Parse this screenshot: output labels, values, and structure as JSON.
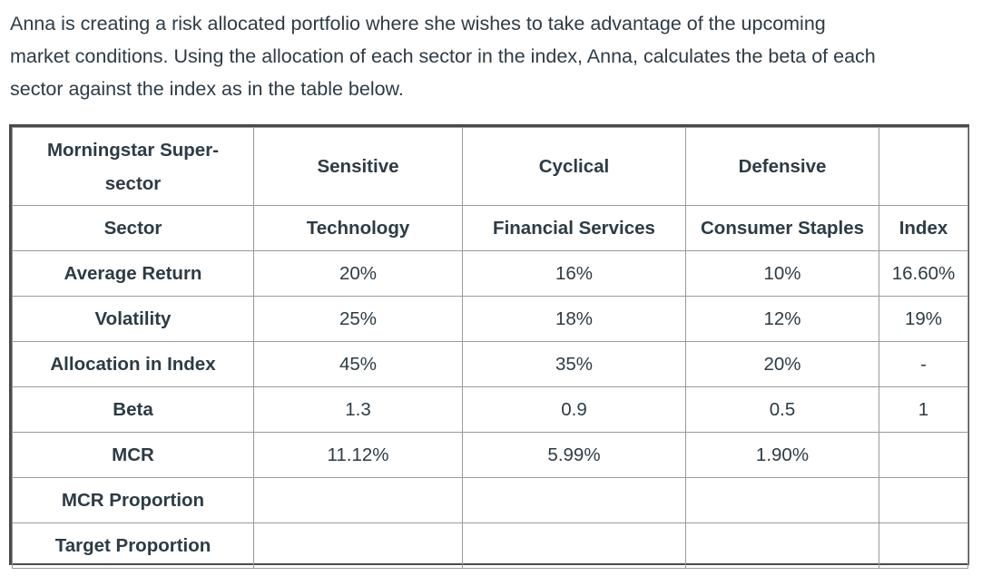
{
  "intro": {
    "line1": "Anna is creating a risk allocated portfolio where she wishes to take advantage of the upcoming",
    "line2": "market conditions. Using the allocation of each sector in the index, Anna, calculates the beta of each",
    "line3": "sector against the index as in the table below."
  },
  "table": {
    "header": {
      "label_line1": "Morningstar Super-",
      "label_line2": "sector",
      "columns": [
        "Sensitive",
        "Cyclical",
        "Defensive",
        ""
      ]
    },
    "rows": [
      {
        "label": "Sector",
        "values": [
          "Technology",
          "Financial Services",
          "Consumer Staples",
          "Index"
        ]
      },
      {
        "label": "Average Return",
        "values": [
          "20%",
          "16%",
          "10%",
          "16.60%"
        ]
      },
      {
        "label": "Volatility",
        "values": [
          "25%",
          "18%",
          "12%",
          "19%"
        ]
      },
      {
        "label": "Allocation in Index",
        "values": [
          "45%",
          "35%",
          "20%",
          "-"
        ]
      },
      {
        "label": "Beta",
        "values": [
          "1.3",
          "0.9",
          "0.5",
          "1"
        ]
      },
      {
        "label": "MCR",
        "values": [
          "11.12%",
          "5.99%",
          "1.90%",
          ""
        ]
      },
      {
        "label": "MCR Proportion",
        "values": [
          "",
          "",
          "",
          ""
        ]
      },
      {
        "label": "Target Proportion",
        "values": [
          "",
          "",
          "",
          ""
        ]
      }
    ]
  }
}
